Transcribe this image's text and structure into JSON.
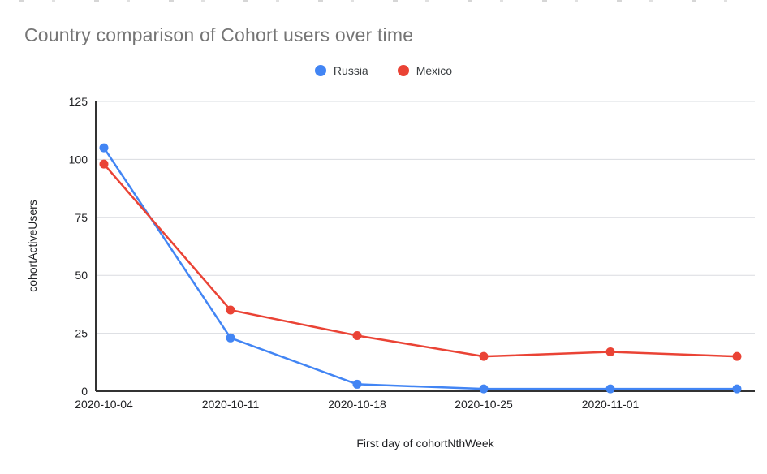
{
  "chart_data": {
    "type": "line",
    "title": "Country comparison of Cohort users over time",
    "xlabel": "First day of cohortNthWeek",
    "ylabel": "cohortActiveUsers",
    "categories": [
      "2020-10-04",
      "2020-10-11",
      "2020-10-18",
      "2020-10-25",
      "2020-11-01",
      ""
    ],
    "series": [
      {
        "name": "Russia",
        "color": "#4285F4",
        "values": [
          105,
          23,
          3,
          1,
          1,
          1
        ]
      },
      {
        "name": "Mexico",
        "color": "#EA4335",
        "values": [
          98,
          35,
          24,
          15,
          17,
          15
        ]
      }
    ],
    "y_ticks": [
      0,
      25,
      50,
      75,
      100,
      125
    ],
    "ylim": [
      0,
      125
    ],
    "grid": true,
    "legend_position": "top-center",
    "colors": {
      "title_text": "#757575",
      "tick_label": "#202124",
      "gridline": "#dadce0",
      "axis_line": "#333333",
      "legend_text": "#3c4043"
    }
  }
}
